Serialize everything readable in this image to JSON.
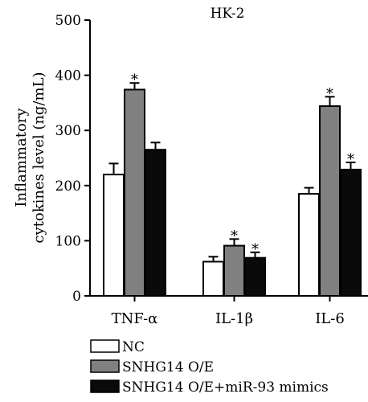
{
  "chart_data": {
    "type": "bar",
    "title": "HK-2",
    "ylabel_lines": [
      "Inflammatory",
      "cytokines level (ng/mL)"
    ],
    "xlabel": "",
    "ylim": [
      0,
      500
    ],
    "yticks": [
      0,
      100,
      200,
      300,
      400,
      500
    ],
    "categories": [
      "TNF-α",
      "IL-1β",
      "IL-6"
    ],
    "series": [
      {
        "name": "NC",
        "color": "#ffffff",
        "values": [
          220,
          62,
          185
        ],
        "errors": [
          20,
          9,
          11
        ],
        "significant": [
          false,
          false,
          false
        ]
      },
      {
        "name": "SNHG14 O/E",
        "color": "#808080",
        "values": [
          374,
          91,
          344
        ],
        "errors": [
          12,
          12,
          17
        ],
        "significant": [
          true,
          true,
          true
        ]
      },
      {
        "name": "SNHG14 O/E+miR-93 mimics",
        "color": "#0a0a0a",
        "values": [
          265,
          69,
          229
        ],
        "errors": [
          13,
          10,
          13
        ],
        "significant": [
          false,
          true,
          true
        ]
      }
    ],
    "significance_marker": "*",
    "legend_position": "bottom-left",
    "grid": false
  }
}
